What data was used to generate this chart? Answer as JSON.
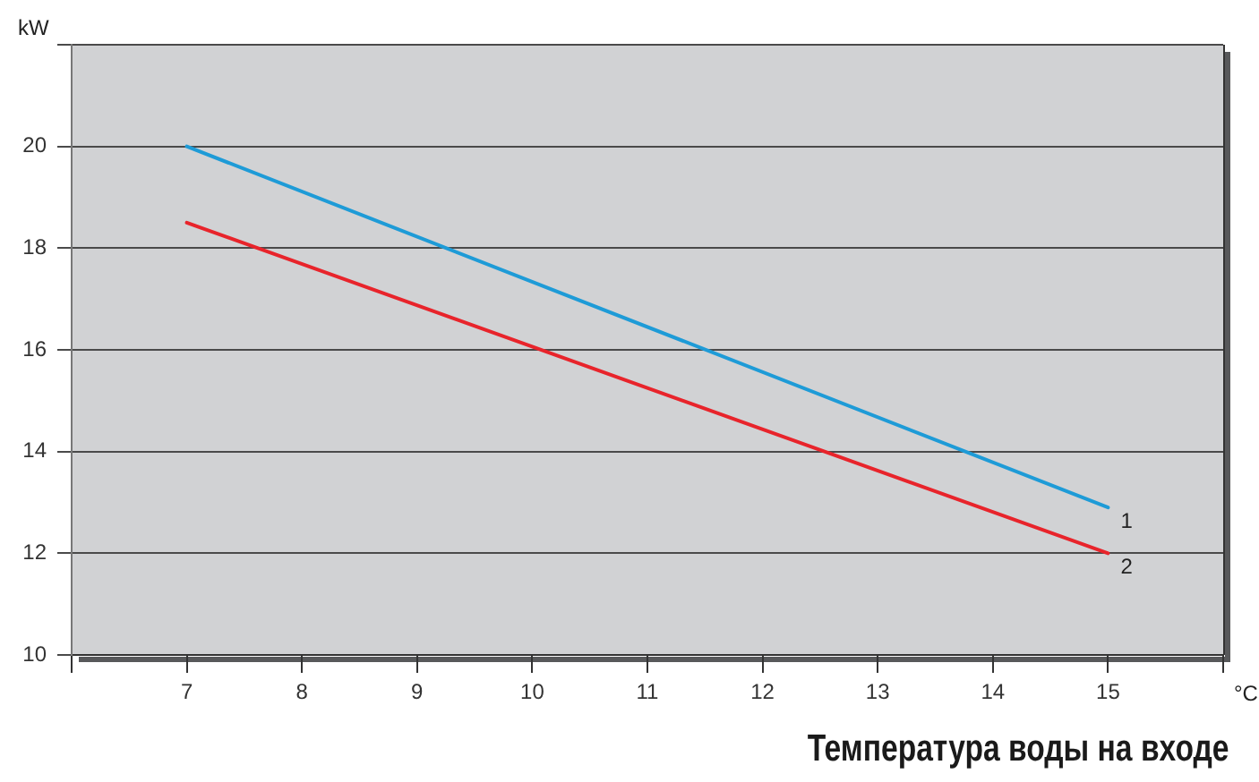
{
  "chart_data": {
    "type": "line",
    "xlabel": "Температура воды на входе",
    "ylabel": "kW",
    "annotations": [
      "°C"
    ],
    "x": [
      7,
      15
    ],
    "series": [
      {
        "name": "1",
        "color": "#1e9bd7",
        "values": [
          20,
          12.9
        ]
      },
      {
        "name": "2",
        "color": "#e8242b",
        "values": [
          18.5,
          12
        ]
      }
    ],
    "xlim": [
      6,
      16
    ],
    "xticks": [
      {
        "value": 6,
        "label": null
      },
      7,
      8,
      9,
      10,
      11,
      12,
      13,
      14,
      15,
      {
        "value": 16,
        "label": null
      }
    ],
    "ylim": [
      10,
      22
    ],
    "yticks": [
      10,
      12,
      14,
      16,
      18,
      20,
      {
        "value": 22,
        "label": null
      }
    ],
    "grid": "y",
    "marker": "none",
    "line_style": "solid"
  }
}
